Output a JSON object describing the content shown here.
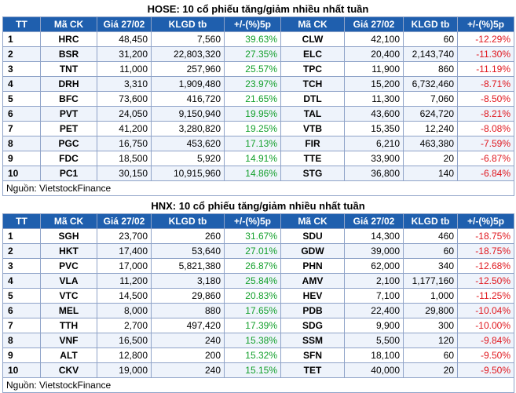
{
  "colors": {
    "header_bg": "#1f5fae",
    "up": "#14a02c",
    "down": "#e0161d",
    "border": "#8fa3c8"
  },
  "columns": [
    "TT",
    "Mã CK",
    "Giá 27/02",
    "KLGD tb",
    "+/-(%)5p",
    "Mã CK",
    "Giá 27/02",
    "KLGD tb",
    "+/-(%)5p"
  ],
  "hose": {
    "title": "HOSE: 10 cổ phiếu tăng/giảm nhiều nhất tuần",
    "source": "Nguồn: VietstockFinance",
    "rows": [
      [
        "1",
        "HRC",
        "48,450",
        "7,560",
        "39.63%",
        "CLW",
        "42,100",
        "60",
        "-12.29%"
      ],
      [
        "2",
        "BSR",
        "31,200",
        "22,803,320",
        "27.35%",
        "ELC",
        "20,400",
        "2,143,740",
        "-11.30%"
      ],
      [
        "3",
        "TNT",
        "11,000",
        "257,960",
        "25.57%",
        "TPC",
        "11,900",
        "860",
        "-11.19%"
      ],
      [
        "4",
        "DRH",
        "3,310",
        "1,909,480",
        "23.97%",
        "TCH",
        "15,200",
        "6,732,460",
        "-8.71%"
      ],
      [
        "5",
        "BFC",
        "73,600",
        "416,720",
        "21.65%",
        "DTL",
        "11,300",
        "7,060",
        "-8.50%"
      ],
      [
        "6",
        "PVT",
        "24,050",
        "9,150,940",
        "19.95%",
        "TAL",
        "43,600",
        "624,720",
        "-8.21%"
      ],
      [
        "7",
        "PET",
        "41,200",
        "3,280,820",
        "19.25%",
        "VTB",
        "15,350",
        "12,240",
        "-8.08%"
      ],
      [
        "8",
        "PGC",
        "16,750",
        "453,620",
        "17.13%",
        "FIR",
        "6,210",
        "463,380",
        "-7.59%"
      ],
      [
        "9",
        "FDC",
        "18,500",
        "5,920",
        "14.91%",
        "TTE",
        "33,900",
        "20",
        "-6.87%"
      ],
      [
        "10",
        "PC1",
        "30,150",
        "10,915,960",
        "14.86%",
        "STG",
        "36,800",
        "140",
        "-6.84%"
      ]
    ]
  },
  "hnx": {
    "title": "HNX: 10 cổ phiếu tăng/giảm nhiều nhất tuần",
    "source": "Nguồn: VietstockFinance",
    "rows": [
      [
        "1",
        "SGH",
        "23,700",
        "260",
        "31.67%",
        "SDU",
        "14,300",
        "460",
        "-18.75%"
      ],
      [
        "2",
        "HKT",
        "17,400",
        "53,640",
        "27.01%",
        "GDW",
        "39,000",
        "60",
        "-18.75%"
      ],
      [
        "3",
        "PVC",
        "17,000",
        "5,821,380",
        "26.87%",
        "PHN",
        "62,000",
        "340",
        "-12.68%"
      ],
      [
        "4",
        "VLA",
        "11,200",
        "3,180",
        "25.84%",
        "AMV",
        "2,100",
        "1,177,160",
        "-12.50%"
      ],
      [
        "5",
        "VTC",
        "14,500",
        "29,860",
        "20.83%",
        "HEV",
        "7,100",
        "1,000",
        "-11.25%"
      ],
      [
        "6",
        "MEL",
        "8,000",
        "880",
        "17.65%",
        "PDB",
        "22,400",
        "29,800",
        "-10.04%"
      ],
      [
        "7",
        "TTH",
        "2,700",
        "497,420",
        "17.39%",
        "SDG",
        "9,900",
        "300",
        "-10.00%"
      ],
      [
        "8",
        "VNF",
        "16,500",
        "240",
        "15.38%",
        "SSM",
        "5,500",
        "120",
        "-9.84%"
      ],
      [
        "9",
        "ALT",
        "12,800",
        "200",
        "15.32%",
        "SFN",
        "18,100",
        "60",
        "-9.50%"
      ],
      [
        "10",
        "CKV",
        "19,000",
        "240",
        "15.15%",
        "TET",
        "40,000",
        "20",
        "-9.50%"
      ]
    ]
  }
}
